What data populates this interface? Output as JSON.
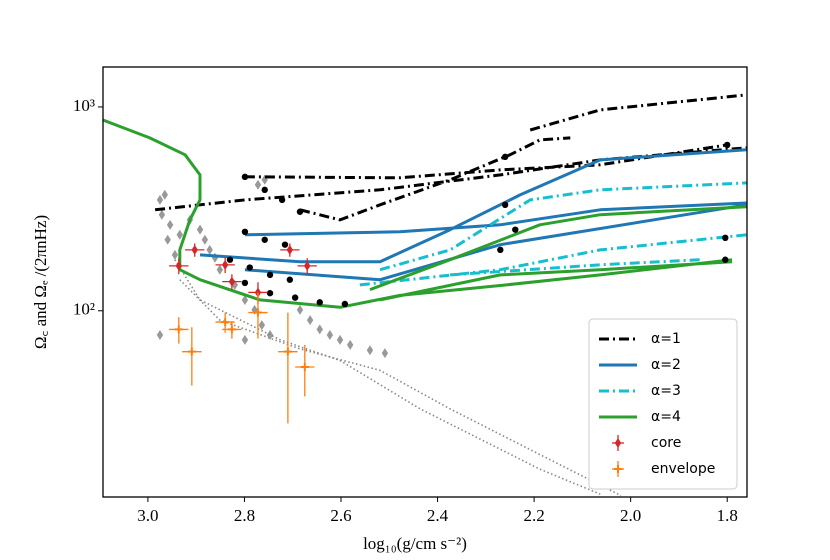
{
  "chart_data": {
    "type": "line",
    "xlabel": "log₁₀(g/cm s⁻²)",
    "ylabel": "Ω꜀ and Ωₑ /(2πnHz)",
    "xlim": [
      3.093,
      1.759
    ],
    "ylim": [
      12.2,
      1570
    ],
    "log_y": true,
    "legend": "lower right",
    "xticks": [
      {
        "value": 3,
        "label": "3.0"
      },
      2.8,
      2.6,
      2.4,
      2.2,
      {
        "value": 2,
        "label": "2.0"
      },
      1.8
    ],
    "yticks": [
      {
        "value": 100,
        "label": "10²"
      },
      {
        "value": 1000,
        "label": "10³"
      }
    ],
    "series": [
      {
        "kind": "scatter",
        "marker": "diamond",
        "color": "#999999",
        "x": [
          2.975,
          2.965,
          2.971,
          2.954,
          2.959,
          2.944,
          2.975,
          2.892,
          2.882,
          2.872,
          2.861,
          2.851,
          2.82,
          2.799,
          2.779,
          2.764,
          2.747,
          2.799,
          2.685,
          2.664,
          2.644,
          2.623,
          2.602,
          2.581,
          2.54,
          2.509,
          2.772,
          2.758,
          2.913,
          2.934
        ],
        "values": [
          350,
          371,
          296,
          264,
          223,
          188,
          76,
          250,
          223,
          199,
          182,
          159,
          134,
          113,
          101,
          85,
          76,
          72,
          101,
          90,
          81,
          76,
          72,
          68,
          64,
          62,
          415,
          439,
          279,
          236
        ]
      },
      {
        "kind": "line",
        "style": "dotted",
        "color": "#888888",
        "x": [
          2.944,
          2.892,
          2.726,
          2.602,
          2.436,
          2.188,
          2.063,
          null,
          2.934,
          2.851,
          2.685,
          2.519,
          2.374,
          2.167,
          2.02
        ],
        "values": [
          178,
          113,
          72,
          57,
          33,
          16.7,
          12.6,
          null,
          142,
          90,
          65,
          51,
          33,
          18.6,
          12.4
        ]
      },
      {
        "kind": "line",
        "style": "dashdot",
        "name": "α=1",
        "color": "#000000",
        "x": [
          2.799,
          2.478,
          2.27,
          2.063,
          1.8,
          null,
          2.985,
          2.799,
          2.519,
          2.27,
          2.063,
          1.76,
          null,
          2.685,
          2.602,
          2.519,
          2.374,
          2.25,
          2.188,
          2.125,
          null,
          2.208,
          2.063,
          1.76
        ],
        "values": [
          454,
          449,
          491,
          520,
          651,
          null,
          313,
          350,
          392,
          464,
          550,
          630,
          null,
          313,
          279,
          331,
          439,
          582,
          689,
          705,
          null,
          771,
          967,
          1145
        ]
      },
      {
        "kind": "line",
        "style": "solid",
        "name": "α=2",
        "color": "#1f77b4",
        "x": [
          2.799,
          2.478,
          2.27,
          2.063,
          1.76,
          null,
          2.892,
          2.685,
          2.519,
          2.374,
          2.229,
          2.063,
          1.76,
          null,
          2.799,
          2.519,
          2.27,
          1.76
        ],
        "values": [
          236,
          244,
          264,
          313,
          338,
          null,
          188,
          174,
          174,
          250,
          370,
          550,
          616,
          null,
          159,
          142,
          211,
          331
        ]
      },
      {
        "kind": "line",
        "style": "dashdot",
        "name": "α=3",
        "color": "#17becf",
        "x": [
          2.561,
          2.27,
          2.063,
          1.76,
          null,
          2.519,
          2.374,
          2.208,
          2.063,
          1.76,
          null,
          2.374,
          2.063,
          1.856
        ],
        "values": [
          134,
          159,
          199,
          236,
          null,
          159,
          199,
          350,
          392,
          424,
          null,
          150,
          168,
          178
        ]
      },
      {
        "kind": "line",
        "style": "solid",
        "name": "α=4",
        "color": "#2ca02c",
        "x": [
          3.093,
          2.996,
          2.923,
          2.892,
          2.892,
          2.913,
          2.934,
          2.934,
          2.892,
          2.768,
          2.602,
          2.478,
          2.27,
          2.063,
          1.79,
          null,
          2.54,
          2.374,
          2.188,
          2.063,
          1.76,
          null,
          2.519,
          2.27,
          2.063,
          1.79
        ],
        "values": [
          863,
          705,
          582,
          464,
          350,
          279,
          199,
          159,
          142,
          113,
          104,
          119,
          133,
          150,
          178,
          null,
          127,
          178,
          264,
          296,
          324,
          null,
          113,
          150,
          159,
          174
        ]
      },
      {
        "kind": "scatter",
        "marker": "circle",
        "color": "#000000",
        "x": [
          2.799,
          2.758,
          2.722,
          2.685,
          2.799,
          2.758,
          2.716,
          2.83,
          2.789,
          2.747,
          2.706,
          2.799,
          2.747,
          2.695,
          2.644,
          2.592,
          2.26,
          2.26,
          2.239,
          2.27,
          1.8,
          1.804,
          1.804
        ],
        "values": [
          454,
          392,
          350,
          306,
          244,
          223,
          211,
          178,
          163,
          150,
          142,
          137,
          122,
          116,
          110,
          108,
          569,
          331,
          250,
          199,
          651,
          228,
          178
        ]
      },
      {
        "kind": "errorbar",
        "marker": "diamond",
        "name": "core",
        "color": "#d62728",
        "x": [
          2.936,
          2.903,
          2.84,
          2.826,
          2.772,
          2.706,
          2.67
        ],
        "values": [
          166,
          199,
          168,
          139,
          123,
          199,
          166
        ],
        "errors": [
          15,
          15,
          15,
          12,
          15,
          15,
          15
        ],
        "xerrors": [
          0.02,
          0.02,
          0.02,
          0.02,
          0.02,
          0.02,
          0.02
        ]
      },
      {
        "kind": "errorbar",
        "marker": "plus",
        "name": "envelope",
        "color": "#ff7f0e",
        "x": [
          2.936,
          2.909,
          2.84,
          2.826,
          2.772,
          2.71,
          2.675
        ],
        "values": [
          81,
          63,
          88,
          81,
          98,
          63,
          53
        ],
        "errors": [
          12,
          20,
          10,
          8,
          25,
          35,
          15
        ],
        "xerrors": [
          0.02,
          0.02,
          0.02,
          0.02,
          0.02,
          0.02,
          0.02
        ]
      }
    ]
  }
}
